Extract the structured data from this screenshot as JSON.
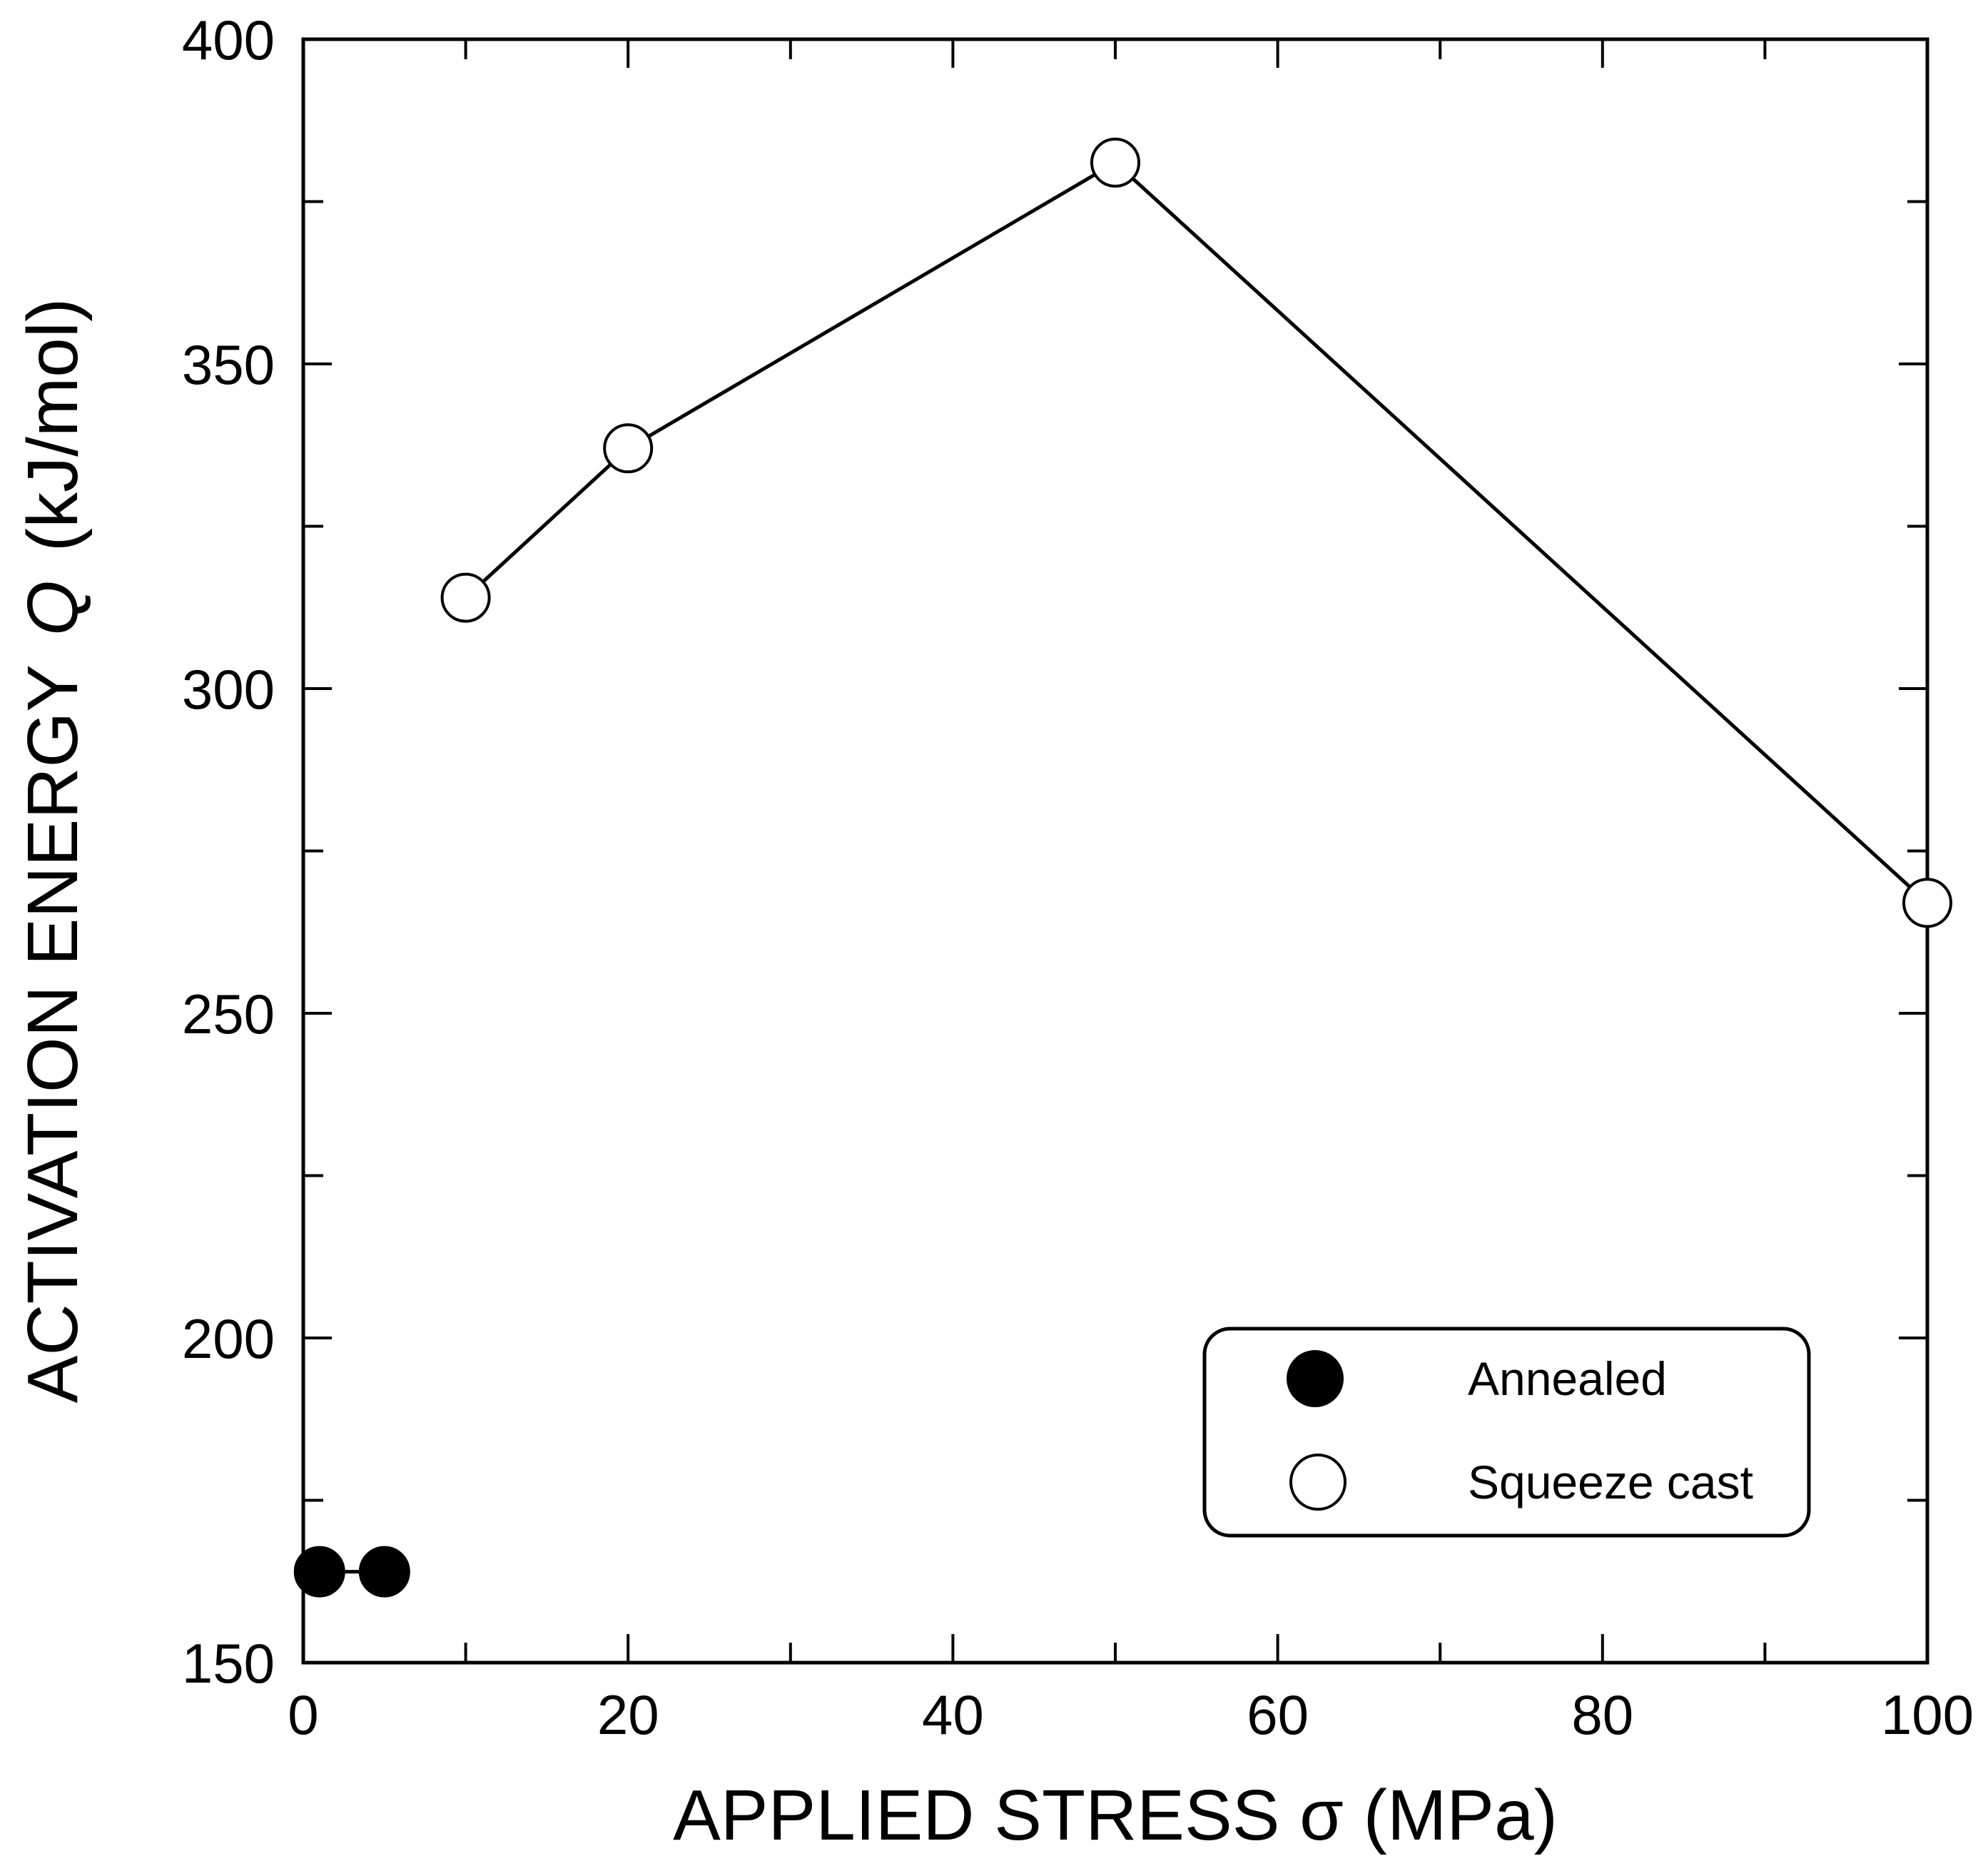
{
  "chart_data": {
    "type": "scatter",
    "xlabel": "APPLIED STRESS σ (MPa)",
    "ylabel": {
      "prefix": "ACTIVATION ENERGY",
      "symbol": "Q",
      "unit": "(kJ/mol)"
    },
    "xlim": [
      0,
      100
    ],
    "ylim": [
      150,
      400
    ],
    "x_ticks": [
      "0",
      "20",
      "40",
      "60",
      "80",
      "100"
    ],
    "y_ticks": [
      "150",
      "200",
      "250",
      "300",
      "350",
      "400"
    ],
    "grid": false,
    "legend_position": "bottom-right",
    "series": [
      {
        "name": "Annealed",
        "marker": "filled-circle",
        "connected": true,
        "x": [
          1,
          5
        ],
        "y": [
          164,
          164
        ]
      },
      {
        "name": "Squeeze cast",
        "marker": "open-circle",
        "connected": true,
        "x": [
          10,
          20,
          50,
          100
        ],
        "y": [
          314,
          337,
          381,
          267
        ]
      }
    ]
  }
}
